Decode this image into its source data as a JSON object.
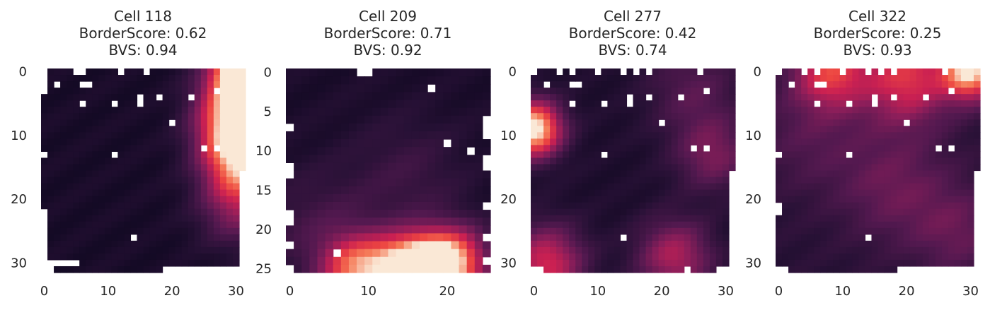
{
  "chart_data": [
    {
      "type": "heatmap",
      "title_lines": [
        "Cell 118",
        "BorderScore:  0.62",
        "BVS:  0.94"
      ],
      "grid_size": [
        32,
        32
      ],
      "xticks": [
        0,
        10,
        20,
        30
      ],
      "yticks": [
        0,
        10,
        20,
        30
      ],
      "colormap": "rocket",
      "hotspots": [
        {
          "row": 0,
          "col": 31,
          "value": 1.0,
          "spread": 3
        },
        {
          "row": 4,
          "col": 30,
          "value": 0.6,
          "spread": 4
        },
        {
          "row": 10,
          "col": 30,
          "value": 0.85,
          "spread": 4
        },
        {
          "row": 16,
          "col": 31,
          "value": 0.55,
          "spread": 4
        },
        {
          "row": 22,
          "col": 30,
          "value": 0.25,
          "spread": 4
        }
      ],
      "base_level": 0.04,
      "masked_cells": [
        [
          0,
          0
        ],
        [
          1,
          0
        ],
        [
          2,
          0
        ],
        [
          3,
          0
        ],
        [
          0,
          5
        ],
        [
          0,
          6
        ],
        [
          0,
          12
        ],
        [
          0,
          16
        ],
        [
          2,
          2
        ],
        [
          2,
          6
        ],
        [
          2,
          7
        ],
        [
          3,
          27
        ],
        [
          4,
          15
        ],
        [
          4,
          18
        ],
        [
          4,
          23
        ],
        [
          5,
          6
        ],
        [
          5,
          11
        ],
        [
          5,
          15
        ],
        [
          8,
          20
        ],
        [
          12,
          25
        ],
        [
          12,
          27
        ],
        [
          13,
          11
        ],
        [
          26,
          14
        ],
        [
          30,
          0
        ],
        [
          31,
          0
        ],
        [
          31,
          1
        ],
        [
          31,
          19
        ],
        [
          31,
          20
        ],
        [
          31,
          21
        ],
        [
          31,
          22
        ],
        [
          31,
          23
        ],
        [
          31,
          24
        ],
        [
          31,
          25
        ],
        [
          31,
          26
        ],
        [
          31,
          27
        ],
        [
          31,
          28
        ],
        [
          31,
          29
        ],
        [
          31,
          30
        ],
        [
          31,
          31
        ],
        [
          30,
          31
        ],
        [
          29,
          31
        ],
        [
          28,
          31
        ],
        [
          27,
          31
        ],
        [
          26,
          31
        ],
        [
          25,
          31
        ],
        [
          24,
          31
        ],
        [
          23,
          31
        ],
        [
          22,
          31
        ],
        [
          21,
          31
        ],
        [
          20,
          31
        ],
        [
          19,
          31
        ],
        [
          18,
          31
        ],
        [
          17,
          31
        ],
        [
          16,
          31
        ],
        [
          13,
          0
        ],
        [
          22,
          0
        ],
        [
          23,
          0
        ],
        [
          24,
          0
        ],
        [
          25,
          0
        ],
        [
          26,
          0
        ],
        [
          27,
          0
        ],
        [
          28,
          0
        ],
        [
          29,
          0
        ],
        [
          30,
          1
        ],
        [
          30,
          2
        ],
        [
          30,
          3
        ],
        [
          30,
          4
        ],
        [
          30,
          5
        ]
      ]
    },
    {
      "type": "heatmap",
      "title_lines": [
        "Cell 209",
        "BorderScore:  0.71",
        "BVS:  0.92"
      ],
      "grid_size": [
        26,
        26
      ],
      "xticks": [
        0,
        10,
        20
      ],
      "yticks": [
        0,
        5,
        10,
        15,
        20,
        25
      ],
      "colormap": "rocket",
      "hotspots": [
        {
          "row": 25,
          "col": 17,
          "value": 0.95,
          "spread": 3
        },
        {
          "row": 25,
          "col": 8,
          "value": 0.6,
          "spread": 3
        },
        {
          "row": 24,
          "col": 21,
          "value": 0.7,
          "spread": 3
        },
        {
          "row": 25,
          "col": 13,
          "value": 0.55,
          "spread": 3
        },
        {
          "row": 20,
          "col": 4,
          "value": 0.15,
          "spread": 5
        },
        {
          "row": 13,
          "col": 15,
          "value": 0.12,
          "spread": 5
        }
      ],
      "base_level": 0.05,
      "masked_cells": [
        [
          0,
          9
        ],
        [
          0,
          10
        ],
        [
          2,
          18
        ],
        [
          9,
          20
        ],
        [
          10,
          23
        ],
        [
          7,
          0
        ],
        [
          12,
          0
        ],
        [
          13,
          0
        ],
        [
          17,
          25
        ],
        [
          18,
          0
        ],
        [
          19,
          0
        ],
        [
          21,
          25
        ],
        [
          22,
          0
        ],
        [
          23,
          6
        ],
        [
          25,
          0
        ],
        [
          24,
          25
        ],
        [
          11,
          25
        ],
        [
          12,
          25
        ],
        [
          6,
          25
        ],
        [
          7,
          25
        ],
        [
          8,
          25
        ]
      ]
    },
    {
      "type": "heatmap",
      "title_lines": [
        "Cell 277",
        "BorderScore:  0.42",
        "BVS:  0.74"
      ],
      "grid_size": [
        32,
        32
      ],
      "xticks": [
        0,
        10,
        20,
        30
      ],
      "yticks": [
        0,
        10,
        20,
        30
      ],
      "colormap": "rocket",
      "hotspots": [
        {
          "row": 9,
          "col": 0,
          "value": 1.0,
          "spread": 3
        },
        {
          "row": 30,
          "col": 2,
          "value": 0.55,
          "spread": 4
        },
        {
          "row": 29,
          "col": 22,
          "value": 0.45,
          "spread": 4
        },
        {
          "row": 13,
          "col": 28,
          "value": 0.3,
          "spread": 4
        },
        {
          "row": 3,
          "col": 25,
          "value": 0.2,
          "spread": 5
        }
      ],
      "base_level": 0.06,
      "masked_cells": [
        [
          0,
          0
        ],
        [
          0,
          4
        ],
        [
          0,
          6
        ],
        [
          0,
          10
        ],
        [
          0,
          14
        ],
        [
          0,
          16
        ],
        [
          0,
          18
        ],
        [
          0,
          26
        ],
        [
          2,
          2
        ],
        [
          2,
          6
        ],
        [
          2,
          7
        ],
        [
          3,
          27
        ],
        [
          4,
          15
        ],
        [
          4,
          18
        ],
        [
          4,
          23
        ],
        [
          5,
          6
        ],
        [
          5,
          11
        ],
        [
          5,
          15
        ],
        [
          8,
          20
        ],
        [
          12,
          25
        ],
        [
          12,
          27
        ],
        [
          13,
          11
        ],
        [
          26,
          14
        ],
        [
          31,
          0
        ],
        [
          31,
          1
        ],
        [
          31,
          31
        ],
        [
          30,
          31
        ],
        [
          29,
          31
        ],
        [
          28,
          31
        ],
        [
          27,
          31
        ],
        [
          26,
          31
        ],
        [
          25,
          31
        ],
        [
          24,
          31
        ],
        [
          23,
          31
        ],
        [
          22,
          31
        ],
        [
          21,
          31
        ],
        [
          20,
          31
        ],
        [
          19,
          31
        ],
        [
          18,
          31
        ],
        [
          17,
          31
        ],
        [
          16,
          31
        ],
        [
          31,
          30
        ],
        [
          31,
          29
        ],
        [
          31,
          24
        ]
      ]
    },
    {
      "type": "heatmap",
      "title_lines": [
        "Cell 322",
        "BorderScore:  0.25",
        "BVS:  0.93"
      ],
      "grid_size": [
        32,
        32
      ],
      "xticks": [
        0,
        10,
        20,
        30
      ],
      "yticks": [
        0,
        10,
        20,
        30
      ],
      "colormap": "rocket",
      "hotspots": [
        {
          "row": 0,
          "col": 30,
          "value": 0.85,
          "spread": 3
        },
        {
          "row": 0,
          "col": 8,
          "value": 0.55,
          "spread": 4
        },
        {
          "row": 1,
          "col": 20,
          "value": 0.55,
          "spread": 5
        },
        {
          "row": 18,
          "col": 18,
          "value": 0.22,
          "spread": 6
        },
        {
          "row": 10,
          "col": 5,
          "value": 0.15,
          "spread": 6
        },
        {
          "row": 25,
          "col": 28,
          "value": 0.2,
          "spread": 5
        }
      ],
      "base_level": 0.1,
      "masked_cells": [
        [
          0,
          0
        ],
        [
          0,
          4
        ],
        [
          0,
          6
        ],
        [
          0,
          10
        ],
        [
          0,
          14
        ],
        [
          0,
          16
        ],
        [
          0,
          18
        ],
        [
          0,
          26
        ],
        [
          2,
          2
        ],
        [
          2,
          6
        ],
        [
          2,
          7
        ],
        [
          3,
          27
        ],
        [
          4,
          15
        ],
        [
          4,
          18
        ],
        [
          4,
          23
        ],
        [
          5,
          6
        ],
        [
          5,
          11
        ],
        [
          5,
          15
        ],
        [
          8,
          20
        ],
        [
          12,
          25
        ],
        [
          12,
          27
        ],
        [
          13,
          11
        ],
        [
          26,
          14
        ],
        [
          31,
          0
        ],
        [
          31,
          1
        ],
        [
          31,
          19
        ],
        [
          31,
          20
        ],
        [
          31,
          21
        ],
        [
          31,
          22
        ],
        [
          31,
          23
        ],
        [
          31,
          24
        ],
        [
          31,
          25
        ],
        [
          31,
          26
        ],
        [
          31,
          27
        ],
        [
          31,
          28
        ],
        [
          31,
          29
        ],
        [
          31,
          30
        ],
        [
          31,
          31
        ],
        [
          30,
          31
        ],
        [
          29,
          31
        ],
        [
          28,
          31
        ],
        [
          27,
          31
        ],
        [
          26,
          31
        ],
        [
          25,
          31
        ],
        [
          24,
          31
        ],
        [
          23,
          31
        ],
        [
          22,
          31
        ],
        [
          21,
          31
        ],
        [
          20,
          31
        ],
        [
          19,
          31
        ],
        [
          18,
          31
        ],
        [
          17,
          31
        ],
        [
          16,
          31
        ],
        [
          13,
          0
        ],
        [
          21,
          0
        ],
        [
          22,
          0
        ]
      ]
    }
  ]
}
